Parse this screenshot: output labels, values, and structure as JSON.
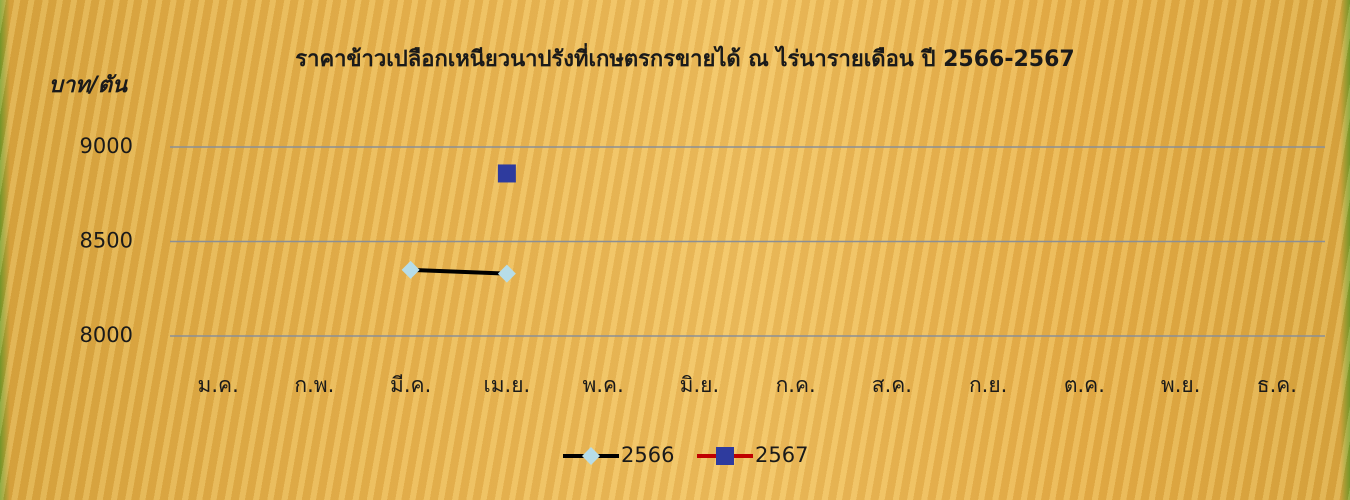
{
  "chart_data": {
    "type": "line",
    "title": "ราคาข้าวเปลือกเหนียวนาปรังที่เกษตรกรขายได้ ณ ไร่นารายเดือน ปี 2566-2567",
    "y_label": "บาท/ตัน",
    "categories": [
      "ม.ค.",
      "ก.พ.",
      "มี.ค.",
      "เม.ย.",
      "พ.ค.",
      "มิ.ย.",
      "ก.ค.",
      "ส.ค.",
      "ก.ย.",
      "ต.ค.",
      "พ.ย.",
      "ธ.ค."
    ],
    "series": [
      {
        "name": "2566",
        "color": "#000000",
        "marker": "diamond",
        "marker_color": "#b7dde8",
        "values": [
          null,
          null,
          8350,
          8330,
          null,
          null,
          null,
          null,
          null,
          null,
          null,
          null
        ]
      },
      {
        "name": "2567",
        "color": "#c00000",
        "marker": "square",
        "marker_color": "#2e3b9e",
        "values": [
          null,
          null,
          null,
          8860,
          null,
          null,
          null,
          null,
          null,
          null,
          null,
          null
        ]
      }
    ],
    "ylim": [
      8000,
      9000
    ],
    "yticks": [
      8000,
      8500,
      9000
    ],
    "grid": true,
    "legend": "bottom"
  }
}
